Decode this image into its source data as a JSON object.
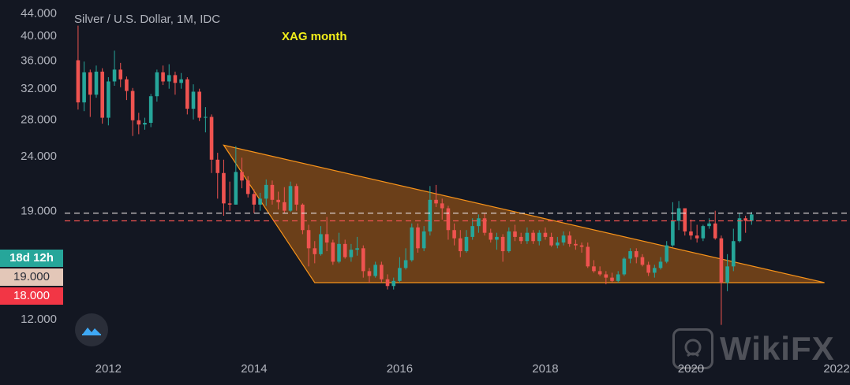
{
  "header": {
    "title": "Silver / U.S. Dollar, 1M, IDC",
    "annotation": "XAG month"
  },
  "price_tags": {
    "countdown": "18d 12h",
    "price_1": "19.000",
    "price_2": "18.000"
  },
  "watermark": {
    "text": "WikiFX"
  },
  "colors": {
    "background": "#131722",
    "up": "#26a69a",
    "down": "#ef5350",
    "pattern_line": "#f7931a",
    "pattern_fill": "#8a4d17",
    "text": "#b2b5be"
  },
  "icons": {
    "logo": "cloud-logo-icon",
    "watermark": "lion-shield-icon"
  },
  "chart_data": {
    "type": "candlestick",
    "x_ticks": [
      "2012",
      "2014",
      "2016",
      "2018",
      "2020",
      "2022"
    ],
    "y_ticks": [
      "12.000",
      "19.000",
      "24.000",
      "28.000",
      "32.000",
      "36.000",
      "40.000",
      "44.000"
    ],
    "y_scale": "log",
    "ylim": [
      10.5,
      46.5
    ],
    "xlim": [
      2011.4,
      2022.0
    ],
    "legend": "none",
    "grid": false,
    "candles": [
      [
        36.0,
        41.7,
        29.2,
        30.1
      ],
      [
        30.1,
        35.8,
        29.0,
        34.2
      ],
      [
        34.2,
        34.6,
        28.3,
        31.1
      ],
      [
        31.1,
        35.2,
        30.7,
        34.3
      ],
      [
        34.3,
        34.8,
        27.5,
        28.2
      ],
      [
        28.2,
        33.5,
        27.3,
        32.9
      ],
      [
        32.9,
        37.5,
        32.3,
        34.6
      ],
      [
        34.6,
        35.6,
        32.1,
        33.2
      ],
      [
        33.2,
        33.6,
        30.4,
        31.6
      ],
      [
        31.6,
        32.0,
        26.1,
        27.9
      ],
      [
        27.9,
        28.8,
        26.3,
        27.4
      ],
      [
        27.4,
        28.2,
        26.8,
        27.6
      ],
      [
        27.6,
        31.2,
        27.1,
        30.9
      ],
      [
        30.9,
        34.6,
        30.2,
        34.2
      ],
      [
        34.2,
        35.2,
        32.4,
        32.9
      ],
      [
        32.9,
        35.4,
        31.9,
        33.8
      ],
      [
        33.8,
        34.3,
        31.1,
        32.7
      ],
      [
        32.7,
        34.1,
        31.9,
        33.2
      ],
      [
        33.2,
        33.5,
        28.6,
        29.3
      ],
      [
        29.3,
        32.5,
        28.0,
        31.5
      ],
      [
        31.5,
        31.9,
        27.8,
        28.2
      ],
      [
        28.2,
        29.5,
        26.5,
        28.3
      ],
      [
        28.3,
        28.6,
        22.3,
        23.6
      ],
      [
        23.6,
        24.3,
        20.0,
        22.3
      ],
      [
        22.3,
        23.6,
        18.6,
        19.6
      ],
      [
        19.6,
        21.5,
        19.0,
        19.5
      ],
      [
        19.5,
        25.0,
        19.5,
        22.4
      ],
      [
        22.4,
        23.8,
        20.9,
        21.6
      ],
      [
        21.6,
        22.0,
        20.1,
        20.4
      ],
      [
        20.4,
        20.8,
        18.8,
        19.5
      ],
      [
        19.5,
        20.5,
        19.0,
        20.0
      ],
      [
        20.0,
        21.7,
        19.4,
        21.2
      ],
      [
        21.2,
        21.6,
        19.5,
        19.9
      ],
      [
        19.9,
        20.6,
        19.1,
        19.7
      ],
      [
        19.7,
        21.0,
        18.8,
        19.0
      ],
      [
        19.0,
        21.5,
        18.9,
        21.1
      ],
      [
        21.1,
        21.3,
        19.0,
        19.5
      ],
      [
        19.5,
        19.6,
        17.2,
        17.5
      ],
      [
        17.5,
        17.9,
        15.0,
        16.2
      ],
      [
        16.2,
        16.7,
        15.2,
        15.8
      ],
      [
        15.8,
        17.8,
        15.7,
        17.2
      ],
      [
        17.2,
        18.5,
        16.0,
        16.6
      ],
      [
        16.6,
        16.8,
        15.1,
        15.3
      ],
      [
        15.3,
        17.3,
        15.2,
        16.5
      ],
      [
        16.5,
        16.8,
        15.5,
        15.6
      ],
      [
        15.6,
        16.5,
        15.3,
        16.1
      ],
      [
        16.1,
        17.0,
        15.7,
        16.2
      ],
      [
        16.2,
        16.4,
        14.3,
        14.7
      ],
      [
        14.7,
        14.9,
        14.0,
        14.4
      ],
      [
        14.4,
        15.3,
        14.3,
        15.1
      ],
      [
        15.1,
        15.3,
        14.0,
        14.2
      ],
      [
        14.2,
        14.5,
        13.6,
        13.8
      ],
      [
        13.8,
        14.3,
        13.6,
        14.1
      ],
      [
        14.1,
        15.6,
        14.0,
        14.9
      ],
      [
        14.9,
        16.2,
        14.8,
        15.4
      ],
      [
        15.4,
        18.0,
        15.3,
        17.7
      ],
      [
        17.7,
        18.0,
        15.9,
        16.2
      ],
      [
        16.2,
        17.8,
        16.0,
        17.4
      ],
      [
        17.4,
        21.1,
        17.1,
        19.9
      ],
      [
        19.9,
        21.2,
        19.3,
        19.6
      ],
      [
        19.6,
        20.0,
        18.3,
        19.2
      ],
      [
        19.2,
        19.4,
        16.8,
        17.5
      ],
      [
        17.5,
        18.0,
        16.4,
        16.9
      ],
      [
        16.9,
        17.5,
        15.6,
        16.0
      ],
      [
        16.0,
        17.5,
        15.9,
        17.0
      ],
      [
        17.0,
        18.4,
        16.8,
        17.8
      ],
      [
        17.8,
        18.7,
        17.3,
        18.4
      ],
      [
        18.4,
        18.8,
        17.1,
        17.3
      ],
      [
        17.3,
        17.6,
        16.6,
        16.8
      ],
      [
        16.8,
        17.3,
        16.1,
        17.0
      ],
      [
        17.0,
        17.2,
        15.3,
        16.0
      ],
      [
        16.0,
        17.7,
        15.9,
        17.4
      ],
      [
        17.4,
        17.9,
        16.7,
        17.0
      ],
      [
        17.0,
        17.3,
        16.5,
        16.7
      ],
      [
        16.7,
        17.7,
        16.5,
        17.3
      ],
      [
        17.3,
        17.5,
        16.5,
        16.7
      ],
      [
        16.7,
        17.5,
        16.4,
        17.3
      ],
      [
        17.3,
        17.7,
        16.8,
        17.0
      ],
      [
        17.0,
        17.3,
        16.3,
        16.4
      ],
      [
        16.4,
        17.0,
        16.2,
        16.6
      ],
      [
        16.6,
        17.4,
        16.4,
        17.1
      ],
      [
        17.1,
        17.4,
        16.3,
        16.5
      ],
      [
        16.5,
        16.8,
        16.1,
        16.4
      ],
      [
        16.4,
        16.6,
        15.9,
        16.3
      ],
      [
        16.3,
        16.6,
        14.9,
        15.0
      ],
      [
        15.0,
        15.4,
        14.6,
        14.7
      ],
      [
        14.7,
        15.0,
        14.4,
        14.5
      ],
      [
        14.5,
        14.7,
        13.9,
        14.3
      ],
      [
        14.3,
        14.6,
        14.0,
        14.1
      ],
      [
        14.1,
        14.7,
        14.0,
        14.5
      ],
      [
        14.5,
        15.6,
        14.4,
        15.5
      ],
      [
        15.5,
        16.2,
        15.2,
        16.0
      ],
      [
        16.0,
        16.2,
        15.2,
        15.6
      ],
      [
        15.6,
        15.8,
        15.0,
        15.1
      ],
      [
        15.1,
        15.3,
        14.4,
        14.6
      ],
      [
        14.6,
        15.1,
        14.3,
        14.9
      ],
      [
        14.9,
        15.6,
        14.8,
        15.3
      ],
      [
        15.3,
        16.7,
        15.2,
        16.4
      ],
      [
        16.4,
        19.7,
        16.3,
        18.2
      ],
      [
        18.2,
        19.8,
        17.5,
        19.2
      ],
      [
        19.2,
        19.2,
        17.1,
        17.4
      ],
      [
        17.4,
        18.3,
        16.8,
        17.1
      ],
      [
        17.1,
        17.9,
        16.6,
        16.9
      ],
      [
        16.9,
        17.9,
        16.7,
        17.8
      ],
      [
        17.8,
        18.4,
        17.6,
        18.0
      ],
      [
        18.0,
        19.0,
        16.8,
        16.9
      ],
      [
        16.9,
        17.1,
        11.7,
        14.0
      ],
      [
        14.0,
        15.8,
        13.5,
        15.0
      ],
      [
        15.0,
        17.6,
        14.7,
        16.7
      ],
      [
        16.7,
        18.8,
        16.6,
        18.4
      ],
      [
        18.4,
        18.6,
        17.3,
        18.2
      ],
      [
        18.2,
        18.9,
        17.9,
        18.7
      ]
    ],
    "pattern": {
      "type": "descending-triangle",
      "apex_date": "2013-08",
      "apex_price": 25.1,
      "left_base_date": "2014-11",
      "base_price": 14.0,
      "end_date": "2021-11"
    },
    "reference_lines": [
      {
        "label": "18d 12h",
        "price": 18.8,
        "color": "#e7dfe0",
        "style": "dashed"
      },
      {
        "label": "19.000",
        "price": 18.2,
        "color": "#ef5350",
        "style": "dashed"
      }
    ]
  }
}
